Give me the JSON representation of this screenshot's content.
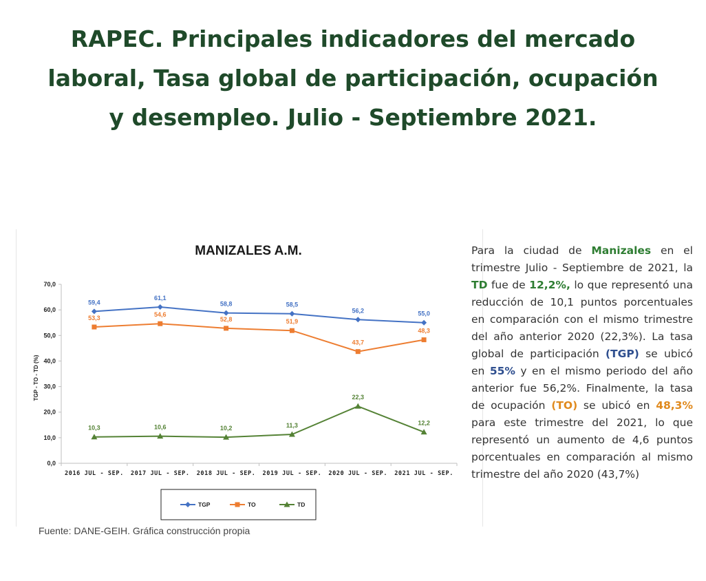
{
  "page": {
    "title": "RAPEC. Principales indicadores del mercado laboral, Tasa global de participación, ocupación y desempleo. Julio - Septiembre 2021.",
    "source": "Fuente: DANE-GEIH. Gráfica construcción propia"
  },
  "description": {
    "p1": "Para la ciudad de ",
    "city": "Manizales",
    "p2": " en el trimestre Julio - Septiembre de 2021, la ",
    "td_label": "TD",
    "p3": " fue de ",
    "td_value": "12,2%,",
    "p4": " lo que representó una reducción de 10,1 puntos porcentuales en comparación con el mismo trimestre del año anterior 2020 (22,3%). La tasa global de participación ",
    "tgp_label": "(TGP)",
    "p5": " se ubicó en ",
    "tgp_value": "55%",
    "p6": " y en el mismo periodo del año anterior fue 56,2%. Finalmente, la tasa de ocupación ",
    "to_label": "(TO)",
    "p7": " se ubicó en ",
    "to_value": "48,3%",
    "p8": " para este trimestre del 2021, lo que representó un aumento de 4,6 puntos porcentuales en comparación al mismo trimestre del año 2020 (43,7%)"
  },
  "chart_data": {
    "type": "line",
    "title": "MANIZALES A.M.",
    "xlabel": "",
    "ylabel": "TGP - TO - TD (%)",
    "ylim": [
      0,
      70
    ],
    "yticks": [
      "0,0",
      "10,0",
      "20,0",
      "30,0",
      "40,0",
      "50,0",
      "60,0",
      "70,0"
    ],
    "categories": [
      "2016 JUL - SEP.",
      "2017 JUL - SEP.",
      "2018 JUL - SEP.",
      "2019 JUL - SEP.",
      "2020 JUL - SEP.",
      "2021 JUL - SEP."
    ],
    "legend_position": "bottom",
    "grid": false,
    "series": [
      {
        "name": "TGP",
        "color": "#4472c4",
        "marker": "diamond",
        "values": [
          59.4,
          61.1,
          58.8,
          58.5,
          56.2,
          55.0
        ],
        "labels": [
          "59,4",
          "61,1",
          "58,8",
          "58,5",
          "56,2",
          "55,0"
        ]
      },
      {
        "name": "TO",
        "color": "#ed7d31",
        "marker": "square",
        "values": [
          53.3,
          54.6,
          52.8,
          51.9,
          43.7,
          48.3
        ],
        "labels": [
          "53,3",
          "54,6",
          "52,8",
          "51,9",
          "43,7",
          "48,3"
        ]
      },
      {
        "name": "TD",
        "color": "#548235",
        "marker": "triangle",
        "values": [
          10.3,
          10.6,
          10.2,
          11.3,
          22.3,
          12.2
        ],
        "labels": [
          "10,3",
          "10,6",
          "10,2",
          "11,3",
          "22,3",
          "12,2"
        ]
      }
    ]
  }
}
